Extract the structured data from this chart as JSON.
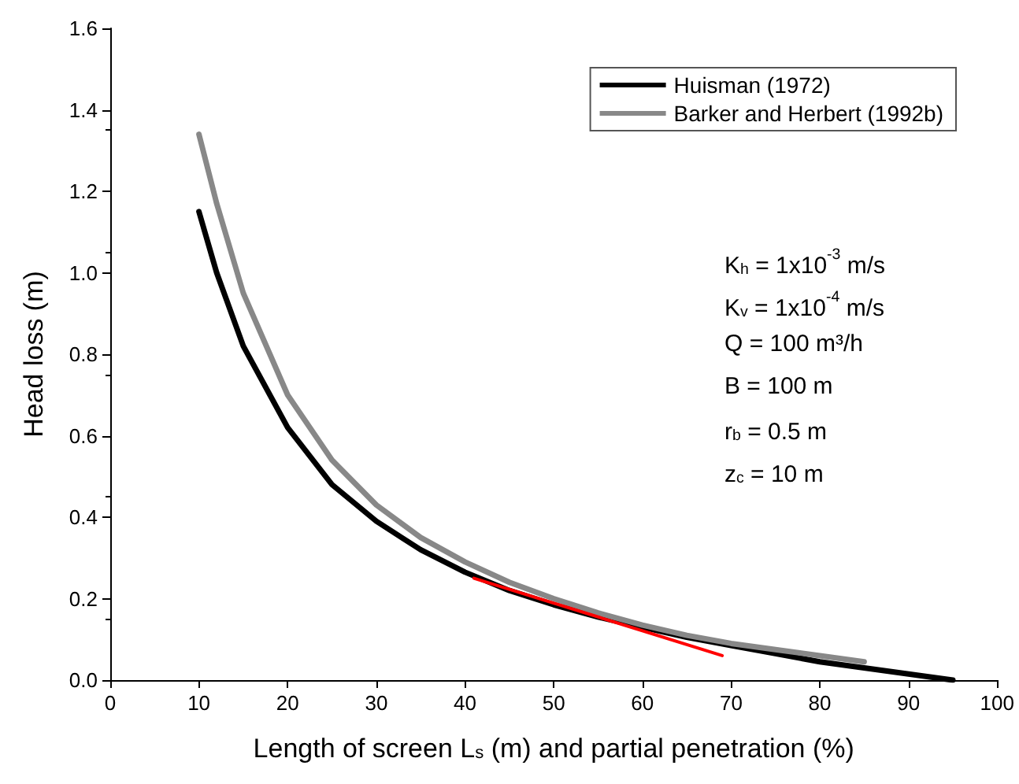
{
  "chart_data": {
    "type": "line",
    "xlabel": "Length of screen L$_{s}$ (m) and partial penetration (%)",
    "ylabel": "Head loss (m)",
    "xlim": [
      0,
      100
    ],
    "xticks": [
      0,
      10,
      20,
      30,
      40,
      50,
      60,
      70,
      80,
      90,
      100
    ],
    "ylim": [
      0,
      1.6
    ],
    "yticks": [
      {
        "value": 0,
        "label": "0.0"
      },
      {
        "value": 0.2,
        "label": "0.2"
      },
      {
        "value": 0.4,
        "label": "0.4"
      },
      {
        "value": 0.6,
        "label": "0.6"
      },
      {
        "value": 0.8,
        "label": "0.8"
      },
      {
        "value": 1,
        "label": "1.0"
      },
      {
        "value": 1.2,
        "label": "1.2"
      },
      {
        "value": 1.4,
        "label": "1.4"
      },
      {
        "value": 1.6,
        "label": "1.6"
      }
    ],
    "grid": false,
    "legend": "top right",
    "marker": "none",
    "line_style": "solid",
    "series": [
      {
        "name": "Huisman (1972)",
        "color": "#000000",
        "x": [
          10,
          12,
          15,
          20,
          25,
          30,
          35,
          40,
          45,
          50,
          55,
          60,
          65,
          70,
          75,
          80,
          85,
          90,
          95
        ],
        "values": [
          1.15,
          1.0,
          0.82,
          0.62,
          0.48,
          0.39,
          0.32,
          0.265,
          0.22,
          0.185,
          0.155,
          0.13,
          0.105,
          0.085,
          0.065,
          0.045,
          0.03,
          0.015,
          0.0
        ]
      },
      {
        "name": "Barker and Herbert (1992b)",
        "color": "#888888",
        "x": [
          10,
          12,
          15,
          20,
          25,
          30,
          35,
          40,
          45,
          50,
          55,
          60,
          65,
          70,
          75,
          80,
          85
        ],
        "values": [
          1.34,
          1.17,
          0.95,
          0.7,
          0.54,
          0.43,
          0.35,
          0.29,
          0.24,
          0.2,
          0.165,
          0.135,
          0.11,
          0.09,
          0.075,
          0.06,
          0.045
        ]
      },
      {
        "color": "#ff0000",
        "x": [
          41,
          69
        ],
        "values": [
          0.25,
          0.06
        ]
      }
    ],
    "annotations": [
      "K$_{h}$ = 1x10$^{-3}$ m/s",
      "K$_{v}$ = 1x10$^{-4}$ m/s",
      "Q = 100 m³/h",
      "B = 100 m",
      "r$_{b}$ = 0.5 m",
      "z$_{c}$ = 10 m"
    ]
  }
}
